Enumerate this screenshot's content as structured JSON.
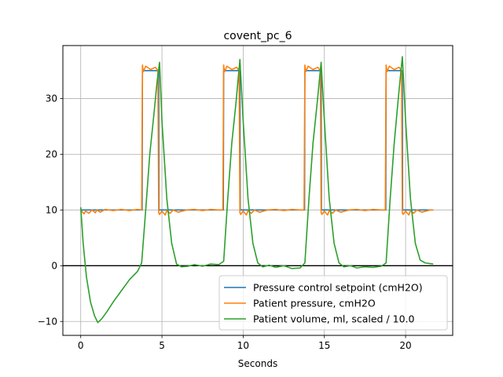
{
  "chart_data": {
    "type": "line",
    "title": "covent_pc_6",
    "xlabel": "Seconds",
    "ylabel": "",
    "xlim": [
      -1.1,
      22.9
    ],
    "ylim": [
      -12.5,
      39.5
    ],
    "xticks": [
      0,
      5,
      10,
      15,
      20
    ],
    "yticks": [
      -10,
      0,
      10,
      20,
      30
    ],
    "grid": true,
    "legend_position": "lower-right",
    "zero_line": true,
    "colors": {
      "setpoint": "#1f77b4",
      "pressure": "#ff7f0e",
      "volume": "#2ca02c"
    },
    "series": [
      {
        "name": "Pressure control setpoint (cmH2O)",
        "x": [
          0,
          3.78,
          3.8,
          4.8,
          4.82,
          8.78,
          8.8,
          9.8,
          9.82,
          13.78,
          13.8,
          14.8,
          14.82,
          18.78,
          18.8,
          19.8,
          19.82,
          21.7
        ],
        "y": [
          10,
          10,
          35,
          35,
          10,
          10,
          35,
          35,
          10,
          10,
          35,
          35,
          10,
          10,
          35,
          35,
          10,
          10
        ]
      },
      {
        "name": "Patient pressure, cmH2O",
        "x": [
          0,
          0.2,
          0.3,
          0.5,
          0.7,
          0.9,
          1.0,
          1.2,
          1.5,
          2.0,
          2.5,
          3.0,
          3.5,
          3.75,
          3.8,
          3.85,
          4.0,
          4.3,
          4.6,
          4.75,
          4.8,
          4.85,
          5.0,
          5.2,
          5.3,
          5.5,
          5.7,
          6.0,
          6.5,
          7.0,
          7.5,
          8.0,
          8.5,
          8.75,
          8.8,
          8.85,
          9.0,
          9.3,
          9.6,
          9.75,
          9.8,
          9.85,
          10.0,
          10.2,
          10.3,
          10.5,
          10.7,
          11.0,
          11.5,
          12.0,
          12.5,
          13.0,
          13.5,
          13.75,
          13.8,
          13.85,
          14.0,
          14.3,
          14.6,
          14.75,
          14.8,
          14.85,
          15.0,
          15.2,
          15.3,
          15.5,
          15.7,
          16.0,
          16.5,
          17.0,
          17.5,
          18.0,
          18.5,
          18.75,
          18.8,
          18.85,
          19.0,
          19.3,
          19.6,
          19.75,
          19.8,
          19.85,
          20.0,
          20.2,
          20.3,
          20.5,
          20.7,
          21.0,
          21.5,
          21.7
        ],
        "y": [
          10,
          9.3,
          9.8,
          9.4,
          10,
          9.5,
          10,
          9.6,
          10.1,
          9.9,
          10.1,
          9.9,
          10.1,
          10,
          36,
          34.8,
          35.8,
          35.2,
          35.6,
          35,
          9.5,
          9.2,
          9.8,
          9.1,
          9.9,
          9.4,
          10,
          9.6,
          10,
          10.1,
          9.9,
          10.1,
          10,
          10,
          36,
          34.8,
          35.8,
          35.2,
          35.6,
          35,
          9.5,
          9.2,
          9.8,
          9.1,
          9.9,
          9.4,
          10,
          9.6,
          10,
          10.1,
          9.9,
          10.1,
          10,
          10,
          36,
          34.8,
          35.8,
          35.2,
          35.6,
          35,
          9.5,
          9.2,
          9.8,
          9.1,
          9.9,
          9.4,
          10,
          9.6,
          10,
          10.1,
          9.9,
          10.1,
          10,
          10,
          36,
          34.8,
          35.8,
          35.2,
          35.6,
          35,
          9.5,
          9.2,
          9.8,
          9.1,
          9.9,
          9.4,
          10,
          9.6,
          10,
          10
        ]
      },
      {
        "name": "Patient volume, ml, scaled / 10.0",
        "x": [
          0,
          0.15,
          0.35,
          0.6,
          0.85,
          1.05,
          1.3,
          1.6,
          2.0,
          2.5,
          3.0,
          3.5,
          3.75,
          4.0,
          4.25,
          4.5,
          4.7,
          4.85,
          5.0,
          5.3,
          5.6,
          5.9,
          6.2,
          6.6,
          7.0,
          7.5,
          8.0,
          8.5,
          8.8,
          9.05,
          9.3,
          9.55,
          9.8,
          10.0,
          10.3,
          10.6,
          10.9,
          11.2,
          11.6,
          12.0,
          12.5,
          13.0,
          13.5,
          13.8,
          14.05,
          14.3,
          14.55,
          14.8,
          15.0,
          15.3,
          15.6,
          15.9,
          16.2,
          16.6,
          17.0,
          17.5,
          18.0,
          18.5,
          18.8,
          19.05,
          19.3,
          19.55,
          19.8,
          20.0,
          20.3,
          20.6,
          20.9,
          21.2,
          21.7
        ],
        "y": [
          10.5,
          4,
          -2,
          -6.5,
          -9,
          -10.2,
          -9.5,
          -8.3,
          -6.5,
          -4.5,
          -2.5,
          -1,
          0.5,
          10,
          20,
          27,
          33,
          36.5,
          26,
          12,
          4,
          0.3,
          -0.2,
          -0.1,
          0.2,
          -0.1,
          0.3,
          0.2,
          0.8,
          12,
          22,
          29,
          37,
          26,
          12,
          4,
          0.5,
          -0.2,
          0.1,
          -0.3,
          0,
          -0.5,
          -0.4,
          0.5,
          12,
          22,
          29,
          36.5,
          26,
          12,
          4,
          0.5,
          -0.2,
          0,
          -0.4,
          -0.2,
          -0.3,
          -0.1,
          0.5,
          12,
          22,
          30,
          37.5,
          26,
          12,
          4,
          1,
          0.5,
          0.3
        ]
      }
    ]
  }
}
